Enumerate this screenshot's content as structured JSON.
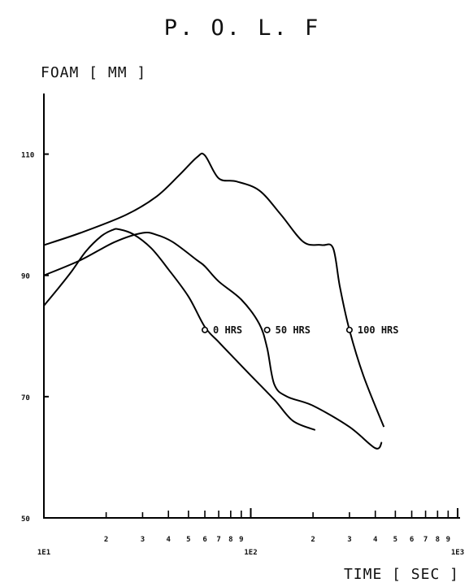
{
  "chart_data": {
    "type": "line",
    "title": "P. O. L. F",
    "ylabel": "FOAM [ MM ]",
    "xlabel": "TIME [ SEC ]",
    "xscale": "log",
    "xlim": [
      10,
      1000
    ],
    "ylim": [
      50,
      120
    ],
    "x_major_tick_labels": [
      "1E1",
      "1E2",
      "1E3"
    ],
    "x_minor_tick_labels": [
      "2",
      "3",
      "4",
      "5",
      "6",
      "7",
      "8",
      "9",
      "2",
      "3",
      "4",
      "5",
      "6",
      "7",
      "8",
      "9"
    ],
    "y_tick_labels": [
      "110",
      "90",
      "70",
      "50"
    ],
    "y_ticks": [
      110,
      90,
      70,
      50
    ],
    "grid": false,
    "series": [
      {
        "name": "0 HRS",
        "x": [
          10,
          11.5,
          13.5,
          16,
          19,
          21.5,
          23,
          27,
          33,
          40,
          50,
          60,
          70,
          85,
          100,
          130,
          160,
          205
        ],
        "y": [
          85,
          87.5,
          90.5,
          94,
          96.5,
          97.5,
          97.6,
          96.8,
          94.5,
          91,
          86.5,
          81.5,
          79,
          76,
          73.5,
          69.5,
          66,
          64.5
        ],
        "marker_at": [
          60,
          81
        ]
      },
      {
        "name": "50 HRS",
        "x": [
          10,
          15,
          22,
          30,
          35,
          42,
          55,
          60,
          70,
          90,
          110,
          120,
          130,
          150,
          200,
          300,
          400,
          430
        ],
        "y": [
          90,
          92.5,
          95.5,
          97,
          96.7,
          95.5,
          92.5,
          91.5,
          89,
          86,
          82,
          78,
          72,
          70,
          68.5,
          65,
          61.5,
          62.5
        ],
        "marker_at": [
          120,
          81
        ]
      },
      {
        "name": "100 HRS",
        "x": [
          10,
          15,
          25,
          35,
          45,
          55,
          60,
          70,
          85,
          110,
          140,
          180,
          220,
          250,
          270,
          300,
          350,
          440
        ],
        "y": [
          95,
          97,
          100,
          103,
          106.5,
          109.5,
          109.8,
          106,
          105.5,
          104,
          100,
          95.5,
          95,
          94.5,
          88,
          81,
          73.5,
          65
        ],
        "marker_at": [
          300,
          81
        ]
      }
    ]
  }
}
